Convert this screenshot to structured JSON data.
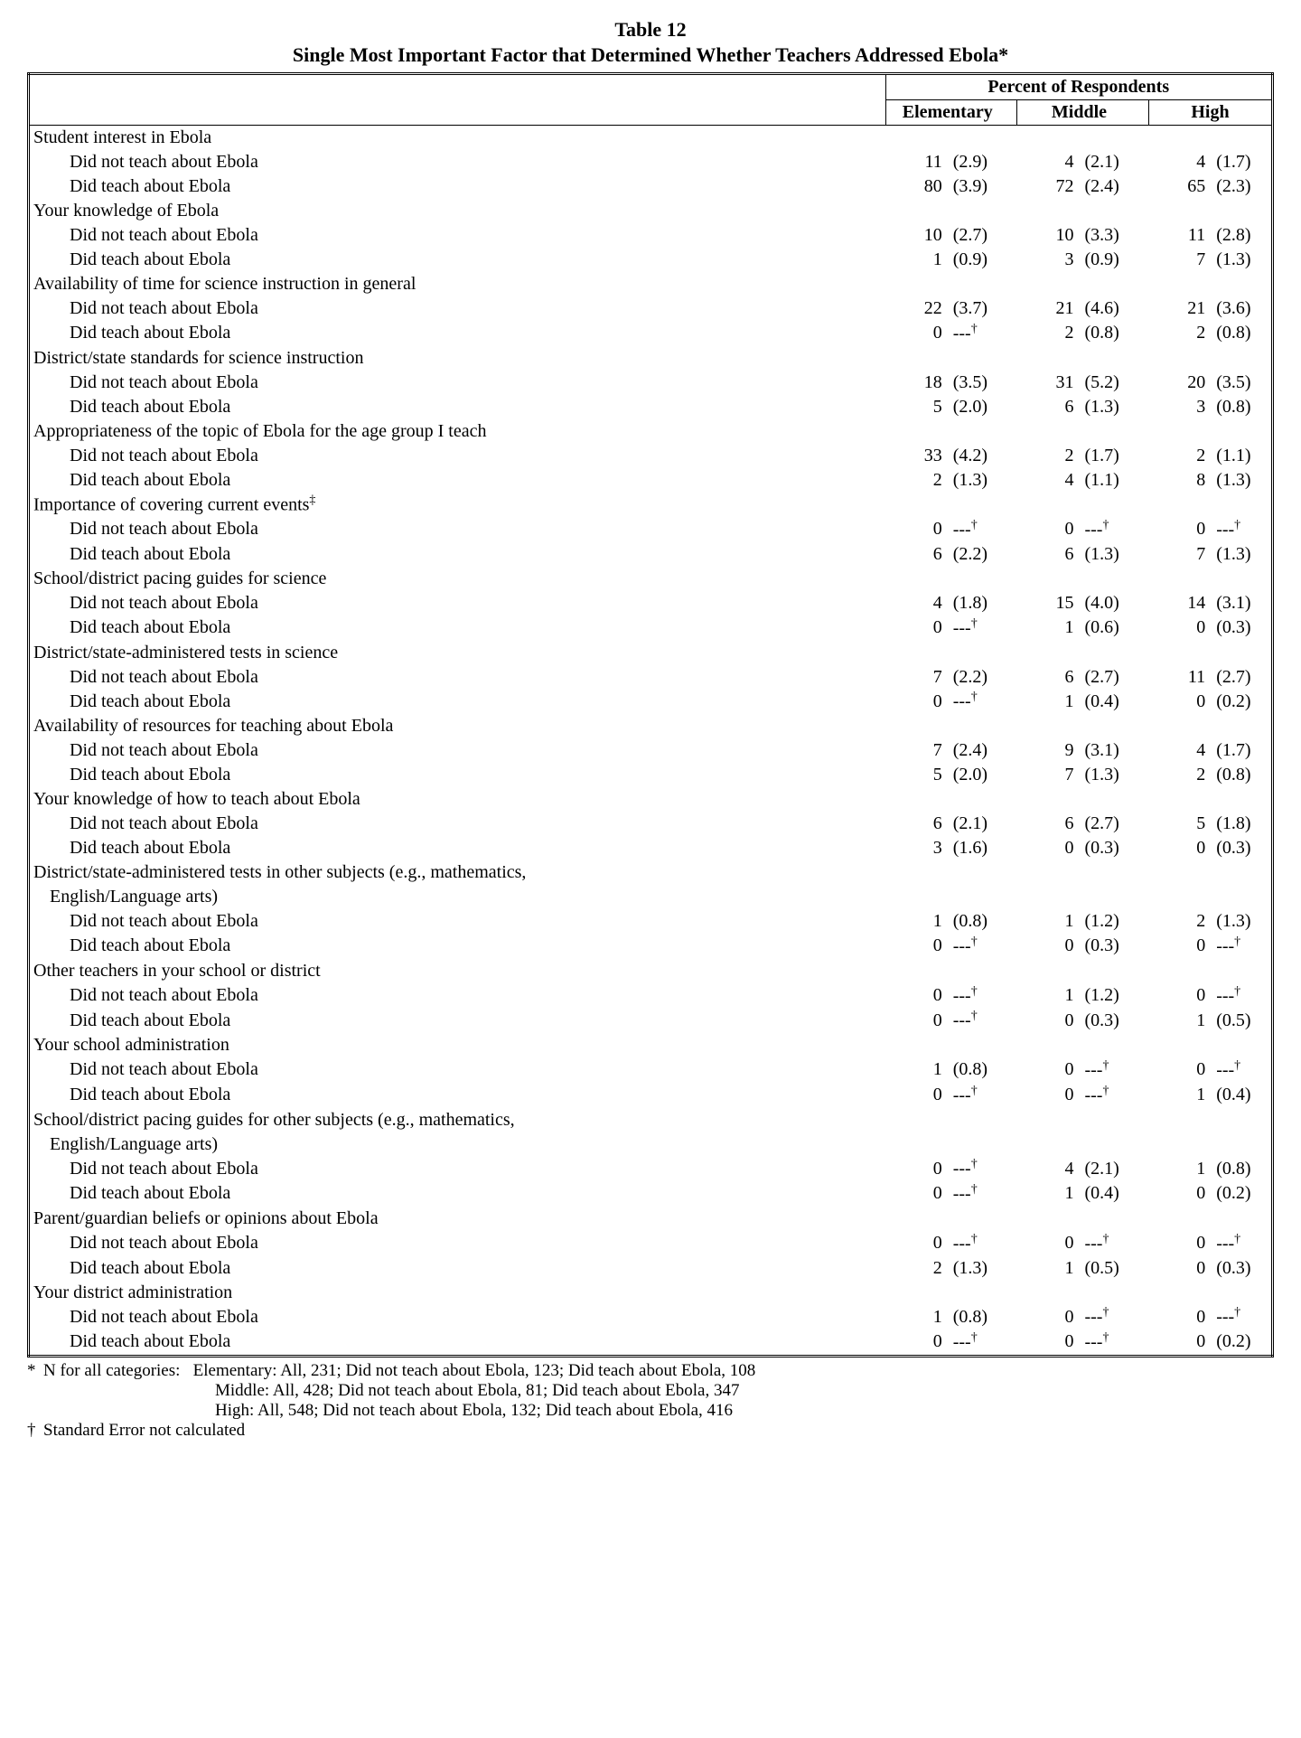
{
  "title_line1": "Table 12",
  "title_line2": "Single Most Important Factor that Determined Whether Teachers Addressed Ebola*",
  "header_super": "Percent of Respondents",
  "col_headers": [
    "Elementary",
    "Middle",
    "High"
  ],
  "sub_didnot": "Did not teach about Ebola",
  "sub_did": "Did teach about Ebola",
  "dash_sym": "---",
  "dagger_sym": "†",
  "dbl_dagger_sym": "‡",
  "factors": [
    {
      "label": "Student interest in Ebola",
      "didnot": {
        "e_v": "11",
        "e_se": "(2.9)",
        "m_v": "4",
        "m_se": "(2.1)",
        "h_v": "4",
        "h_se": "(1.7)"
      },
      "did": {
        "e_v": "80",
        "e_se": "(3.9)",
        "m_v": "72",
        "m_se": "(2.4)",
        "h_v": "65",
        "h_se": "(2.3)"
      }
    },
    {
      "label": "Your knowledge of Ebola",
      "didnot": {
        "e_v": "10",
        "e_se": "(2.7)",
        "m_v": "10",
        "m_se": "(3.3)",
        "h_v": "11",
        "h_se": "(2.8)"
      },
      "did": {
        "e_v": "1",
        "e_se": "(0.9)",
        "m_v": "3",
        "m_se": "(0.9)",
        "h_v": "7",
        "h_se": "(1.3)"
      }
    },
    {
      "label": "Availability of time for science instruction in general",
      "didnot": {
        "e_v": "22",
        "e_se": "(3.7)",
        "m_v": "21",
        "m_se": "(4.6)",
        "h_v": "21",
        "h_se": "(3.6)"
      },
      "did": {
        "e_v": "0",
        "e_se": "DAG",
        "m_v": "2",
        "m_se": "(0.8)",
        "h_v": "2",
        "h_se": "(0.8)"
      }
    },
    {
      "label": "District/state standards for science instruction",
      "didnot": {
        "e_v": "18",
        "e_se": "(3.5)",
        "m_v": "31",
        "m_se": "(5.2)",
        "h_v": "20",
        "h_se": "(3.5)"
      },
      "did": {
        "e_v": "5",
        "e_se": "(2.0)",
        "m_v": "6",
        "m_se": "(1.3)",
        "h_v": "3",
        "h_se": "(0.8)"
      }
    },
    {
      "label": "Appropriateness of the topic of Ebola for the age group I teach",
      "didnot": {
        "e_v": "33",
        "e_se": "(4.2)",
        "m_v": "2",
        "m_se": "(1.7)",
        "h_v": "2",
        "h_se": "(1.1)"
      },
      "did": {
        "e_v": "2",
        "e_se": "(1.3)",
        "m_v": "4",
        "m_se": "(1.1)",
        "h_v": "8",
        "h_se": "(1.3)"
      }
    },
    {
      "label": "Importance of covering current events",
      "label_dagger": true,
      "didnot": {
        "e_v": "0",
        "e_se": "DAG",
        "m_v": "0",
        "m_se": "DAG",
        "h_v": "0",
        "h_se": "DAG"
      },
      "did": {
        "e_v": "6",
        "e_se": "(2.2)",
        "m_v": "6",
        "m_se": "(1.3)",
        "h_v": "7",
        "h_se": "(1.3)"
      }
    },
    {
      "label": "School/district pacing guides for science",
      "didnot": {
        "e_v": "4",
        "e_se": "(1.8)",
        "m_v": "15",
        "m_se": "(4.0)",
        "h_v": "14",
        "h_se": "(3.1)"
      },
      "did": {
        "e_v": "0",
        "e_se": "DAG",
        "m_v": "1",
        "m_se": "(0.6)",
        "h_v": "0",
        "h_se": "(0.3)"
      }
    },
    {
      "label": "District/state-administered tests in science",
      "didnot": {
        "e_v": "7",
        "e_se": "(2.2)",
        "m_v": "6",
        "m_se": "(2.7)",
        "h_v": "11",
        "h_se": "(2.7)"
      },
      "did": {
        "e_v": "0",
        "e_se": "DAG",
        "m_v": "1",
        "m_se": "(0.4)",
        "h_v": "0",
        "h_se": "(0.2)"
      }
    },
    {
      "label": "Availability of resources for teaching about Ebola",
      "didnot": {
        "e_v": "7",
        "e_se": "(2.4)",
        "m_v": "9",
        "m_se": "(3.1)",
        "h_v": "4",
        "h_se": "(1.7)"
      },
      "did": {
        "e_v": "5",
        "e_se": "(2.0)",
        "m_v": "7",
        "m_se": "(1.3)",
        "h_v": "2",
        "h_se": "(0.8)"
      }
    },
    {
      "label": "Your knowledge of how to teach about Ebola",
      "didnot": {
        "e_v": "6",
        "e_se": "(2.1)",
        "m_v": "6",
        "m_se": "(2.7)",
        "h_v": "5",
        "h_se": "(1.8)"
      },
      "did": {
        "e_v": "3",
        "e_se": "(1.6)",
        "m_v": "0",
        "m_se": "(0.3)",
        "h_v": "0",
        "h_se": "(0.3)"
      }
    },
    {
      "label": "District/state-administered tests in other subjects (e.g., mathematics,",
      "label_line2": "English/Language arts)",
      "didnot": {
        "e_v": "1",
        "e_se": "(0.8)",
        "m_v": "1",
        "m_se": "(1.2)",
        "h_v": "2",
        "h_se": "(1.3)"
      },
      "did": {
        "e_v": "0",
        "e_se": "DAG",
        "m_v": "0",
        "m_se": "(0.3)",
        "h_v": "0",
        "h_se": "DAG"
      }
    },
    {
      "label": "Other teachers in your school or district",
      "didnot": {
        "e_v": "0",
        "e_se": "DAG",
        "m_v": "1",
        "m_se": "(1.2)",
        "h_v": "0",
        "h_se": "DAG"
      },
      "did": {
        "e_v": "0",
        "e_se": "DAG",
        "m_v": "0",
        "m_se": "(0.3)",
        "h_v": "1",
        "h_se": "(0.5)"
      }
    },
    {
      "label": "Your school administration",
      "didnot": {
        "e_v": "1",
        "e_se": "(0.8)",
        "m_v": "0",
        "m_se": "DAG",
        "h_v": "0",
        "h_se": "DAG"
      },
      "did": {
        "e_v": "0",
        "e_se": "DAG",
        "m_v": "0",
        "m_se": "DAG",
        "h_v": "1",
        "h_se": "(0.4)"
      }
    },
    {
      "label": "School/district pacing guides for other subjects (e.g., mathematics,",
      "label_line2": "English/Language arts)",
      "didnot": {
        "e_v": "0",
        "e_se": "DAG",
        "m_v": "4",
        "m_se": "(2.1)",
        "h_v": "1",
        "h_se": "(0.8)"
      },
      "did": {
        "e_v": "0",
        "e_se": "DAG",
        "m_v": "1",
        "m_se": "(0.4)",
        "h_v": "0",
        "h_se": "(0.2)"
      }
    },
    {
      "label": "Parent/guardian beliefs or opinions about Ebola",
      "didnot": {
        "e_v": "0",
        "e_se": "DAG",
        "m_v": "0",
        "m_se": "DAG",
        "h_v": "0",
        "h_se": "DAG"
      },
      "did": {
        "e_v": "2",
        "e_se": "(1.3)",
        "m_v": "1",
        "m_se": "(0.5)",
        "h_v": "0",
        "h_se": "(0.3)"
      }
    },
    {
      "label": "Your district administration",
      "didnot": {
        "e_v": "1",
        "e_se": "(0.8)",
        "m_v": "0",
        "m_se": "DAG",
        "h_v": "0",
        "h_se": "DAG"
      },
      "did": {
        "e_v": "0",
        "e_se": "DAG",
        "m_v": "0",
        "m_se": "DAG",
        "h_v": "0",
        "h_se": "(0.2)"
      }
    }
  ],
  "footnotes": {
    "star_lead": "N for all categories:",
    "star_lines": [
      "Elementary: All, 231; Did not teach about Ebola, 123; Did teach about Ebola, 108",
      "Middle: All, 428; Did not teach about Ebola, 81; Did teach about Ebola, 347",
      "High: All, 548; Did not teach about Ebola, 132; Did teach about Ebola, 416"
    ],
    "dagger_text": "Standard Error not calculated"
  }
}
